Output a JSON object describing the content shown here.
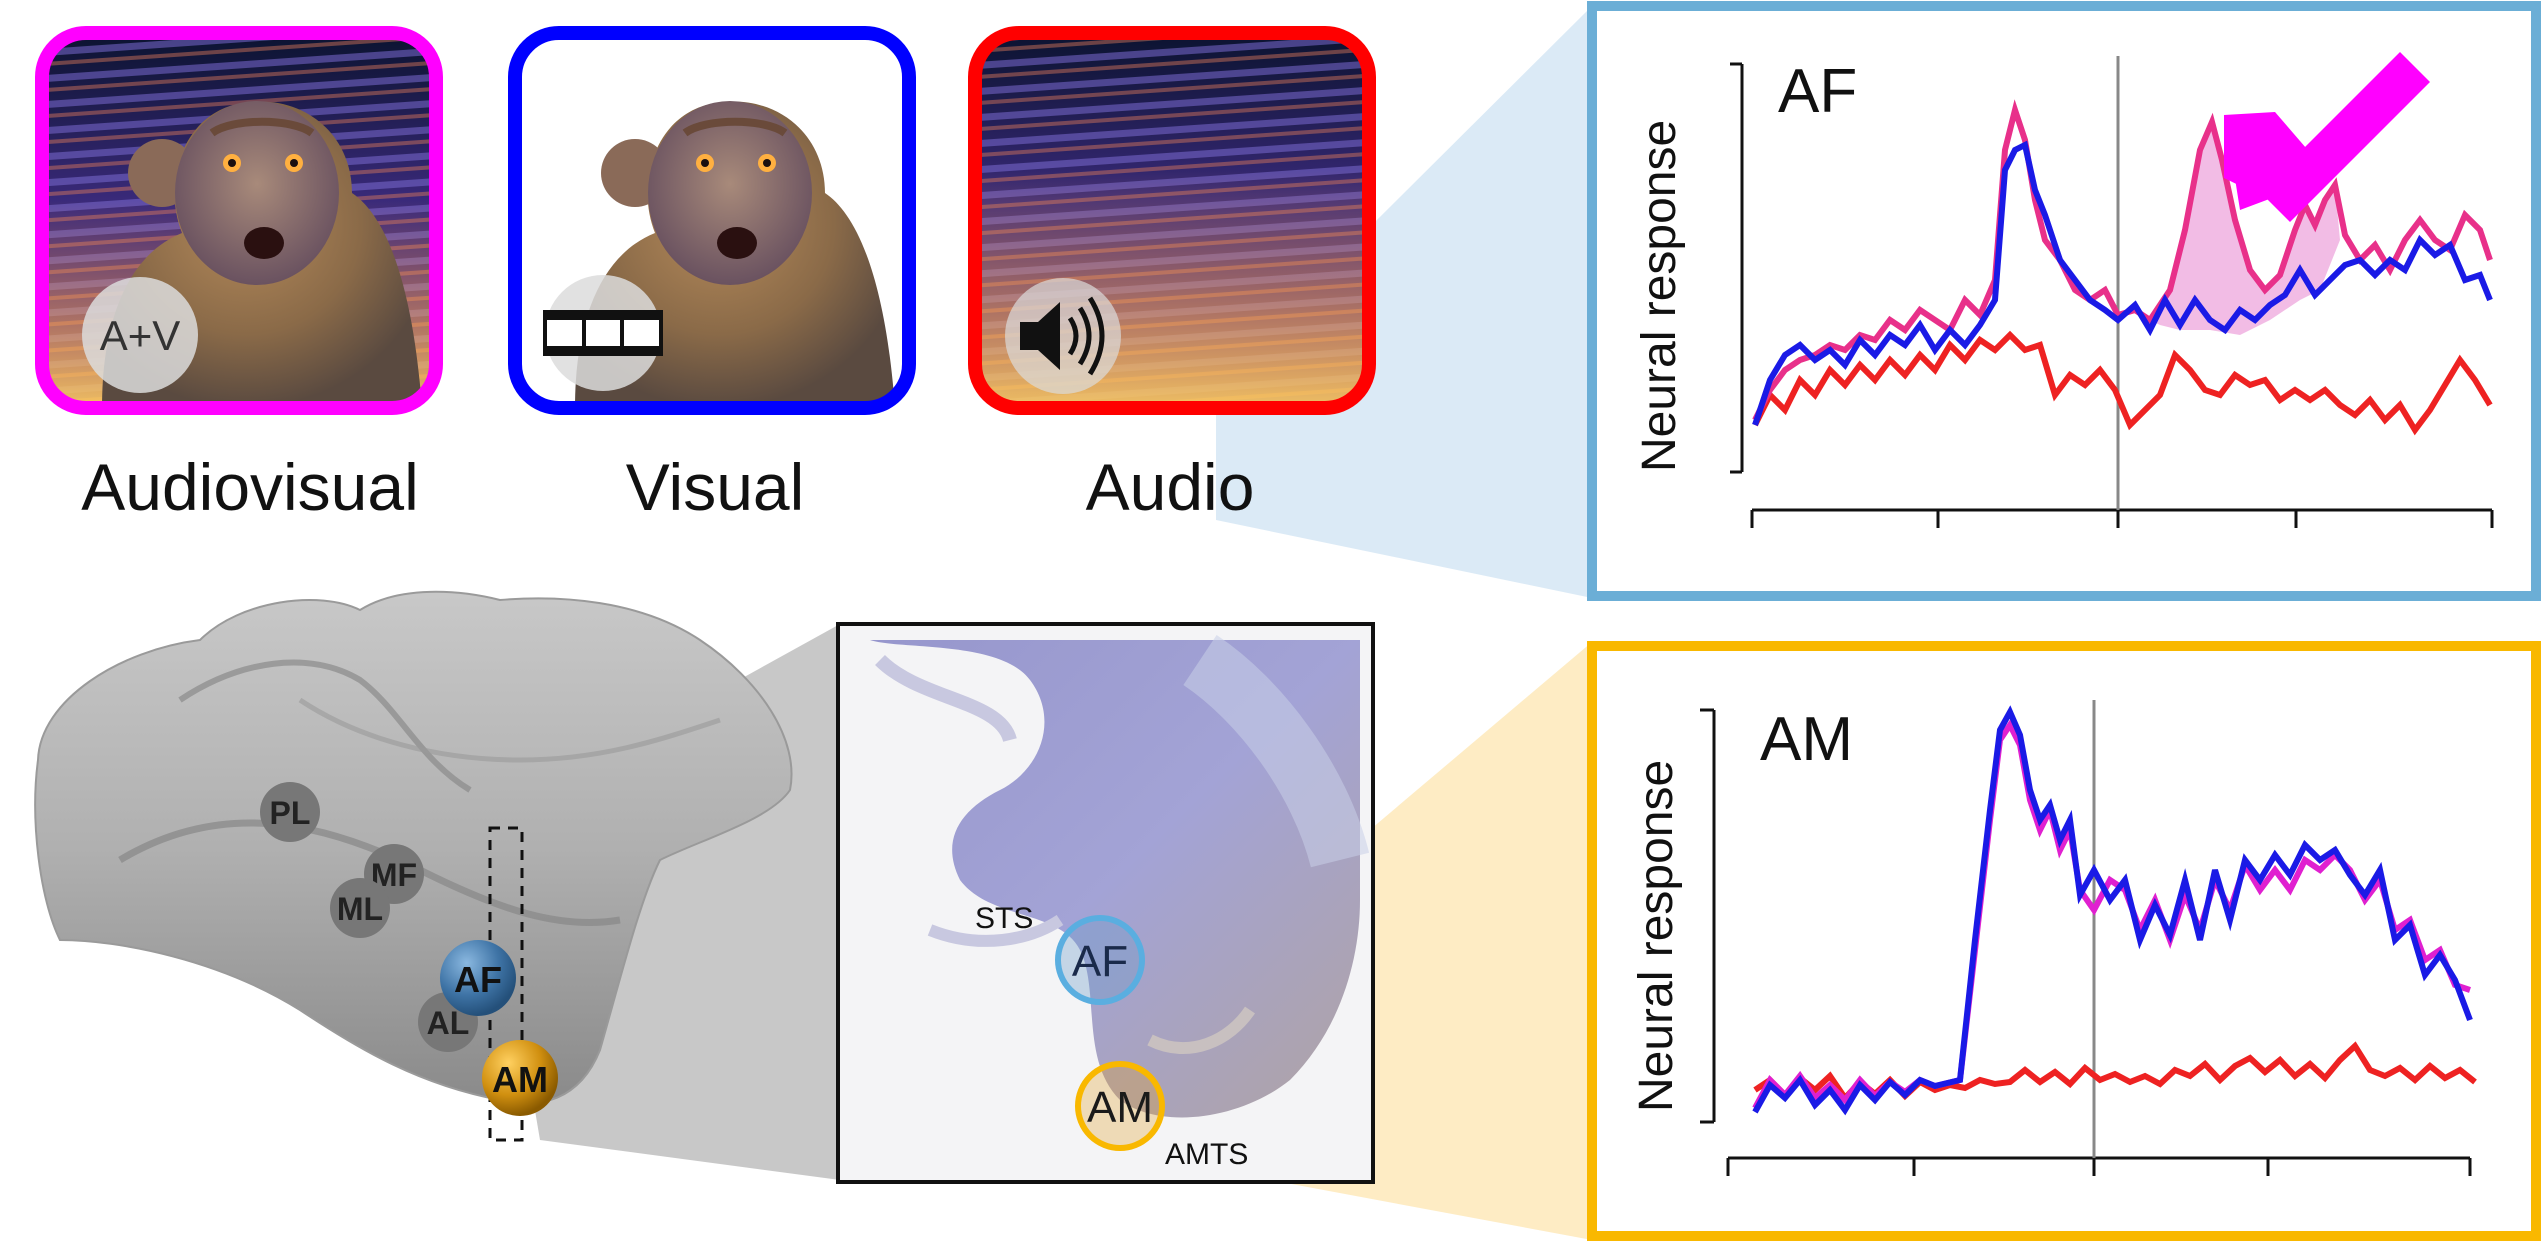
{
  "stimuli": [
    {
      "label": "Audiovisual",
      "badge": "A+V",
      "border_color": "#ff00ff",
      "icon": "text-badge"
    },
    {
      "label": "Visual",
      "badge": "",
      "border_color": "#0000ff",
      "icon": "film-icon"
    },
    {
      "label": "Audio",
      "badge": "",
      "border_color": "#ff0000",
      "icon": "speaker-icon"
    }
  ],
  "brain": {
    "regions": [
      {
        "label": "PL",
        "type": "gray"
      },
      {
        "label": "MF",
        "type": "gray"
      },
      {
        "label": "ML",
        "type": "gray"
      },
      {
        "label": "AF",
        "type": "blue",
        "color": "#4a7fb0"
      },
      {
        "label": "AL",
        "type": "gray"
      },
      {
        "label": "AM",
        "type": "orange",
        "color": "#d99a10"
      }
    ]
  },
  "section": {
    "sts_label": "STS",
    "amts_label": "AMTS",
    "af_label": "AF",
    "am_label": "AM"
  },
  "panels": [
    {
      "title": "AF",
      "ylabel": "Neural response",
      "border_color": "#6baed6"
    },
    {
      "title": "AM",
      "ylabel": "Neural response",
      "border_color": "#f9b800"
    }
  ],
  "colors": {
    "audiovisual": "#e8308a",
    "visual": "#1a1ae6",
    "audio": "#ee2222",
    "supra_fill": "#f0b0e0",
    "arrow": "#ff00ff"
  }
}
